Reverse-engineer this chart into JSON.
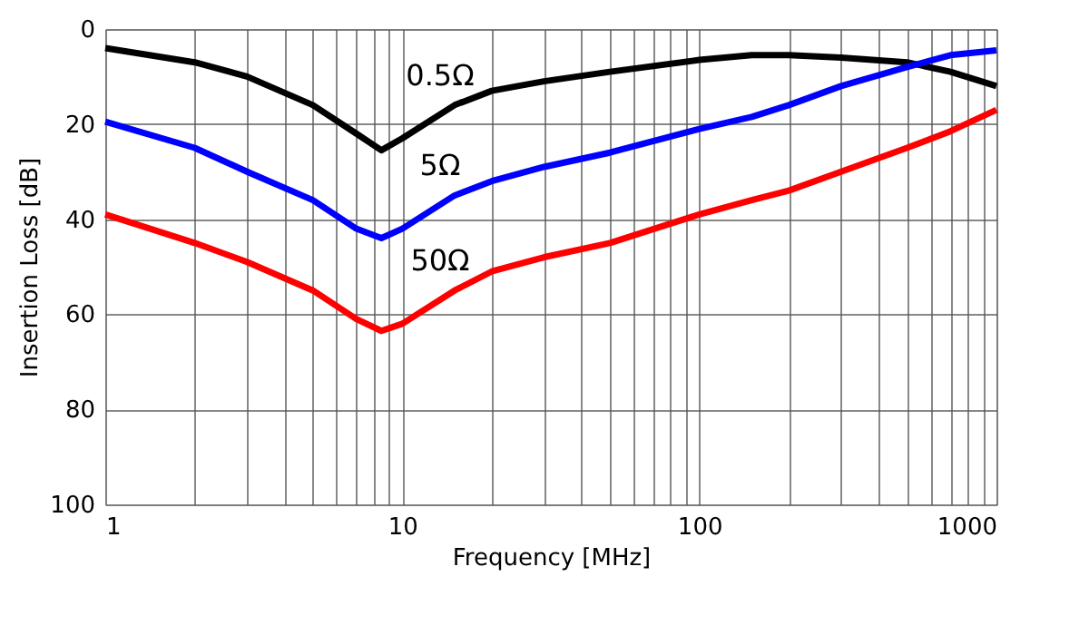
{
  "chart_data": {
    "type": "line",
    "xlabel": "Frequency  [MHz]",
    "ylabel": "Insertion Loss  [dB]",
    "log": "x",
    "grid": true,
    "legend": false,
    "marker": "none",
    "line_style": "solid",
    "x": [
      1,
      2,
      3,
      5,
      7,
      8.5,
      10,
      15,
      20,
      30,
      50,
      100,
      150,
      200,
      300,
      500,
      700,
      1000
    ],
    "series": [
      {
        "name": "0.5Ω",
        "color": "#000000",
        "values": [
          4,
          7,
          10,
          16,
          22,
          25.5,
          23,
          16,
          13,
          11,
          9,
          6.5,
          5.5,
          5.5,
          6,
          7,
          9,
          12
        ]
      },
      {
        "name": "5Ω",
        "color": "#0000ff",
        "values": [
          19.5,
          25,
          30,
          36,
          42,
          44,
          42,
          35,
          32,
          29,
          26,
          21,
          18.5,
          16,
          12,
          8,
          5.5,
          4.5
        ]
      },
      {
        "name": "50Ω",
        "color": "#ff0000",
        "values": [
          39,
          45,
          49,
          55,
          61,
          63.5,
          62,
          55,
          51,
          48,
          45,
          39,
          36,
          34,
          30,
          25,
          21.5,
          17
        ]
      }
    ],
    "xlim": [
      1,
      1000
    ],
    "xticks": [
      1,
      {
        "value": 2,
        "label": null
      },
      {
        "value": 3,
        "label": null
      },
      {
        "value": 4,
        "label": null
      },
      {
        "value": 5,
        "label": null
      },
      {
        "value": 6,
        "label": null
      },
      {
        "value": 7,
        "label": null
      },
      {
        "value": 8,
        "label": null
      },
      {
        "value": 9,
        "label": null
      },
      10,
      {
        "value": 20,
        "label": null
      },
      {
        "value": 30,
        "label": null
      },
      {
        "value": 40,
        "label": null
      },
      {
        "value": 50,
        "label": null
      },
      {
        "value": 60,
        "label": null
      },
      {
        "value": 70,
        "label": null
      },
      {
        "value": 80,
        "label": null
      },
      {
        "value": 90,
        "label": null
      },
      100,
      {
        "value": 200,
        "label": null
      },
      {
        "value": 300,
        "label": null
      },
      {
        "value": 400,
        "label": null
      },
      {
        "value": 500,
        "label": null
      },
      {
        "value": 600,
        "label": null
      },
      {
        "value": 700,
        "label": null
      },
      {
        "value": 800,
        "label": null
      },
      {
        "value": 900,
        "label": null
      },
      1000
    ],
    "ylim": [
      100,
      0
    ],
    "yticks": [
      0,
      20,
      40,
      60,
      80,
      100
    ]
  }
}
